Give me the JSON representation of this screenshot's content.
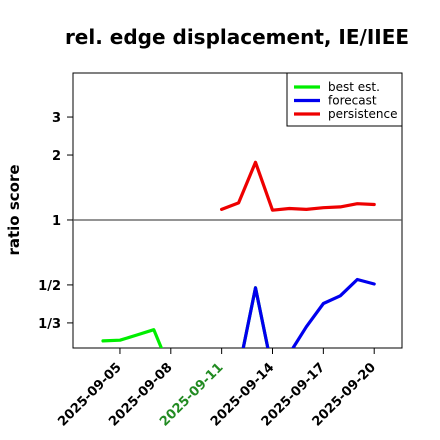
{
  "chart_data": {
    "type": "line",
    "title": "rel. edge displacement, IE/IIEE",
    "xlabel": "",
    "ylabel": "ratio score",
    "x": [
      "2025-09-04",
      "2025-09-05",
      "2025-09-06",
      "2025-09-07",
      "2025-09-08",
      "2025-09-09",
      "2025-09-10",
      "2025-09-11",
      "2025-09-12",
      "2025-09-13",
      "2025-09-14",
      "2025-09-15",
      "2025-09-16",
      "2025-09-17",
      "2025-09-18",
      "2025-09-19",
      "2025-09-20"
    ],
    "xticks": [
      "2025-09-05",
      "2025-09-08",
      "2025-09-11",
      "2025-09-14",
      "2025-09-17",
      "2025-09-20"
    ],
    "xtick_colors": [
      "#000000",
      "#000000",
      "#228B22",
      "#000000",
      "#000000",
      "#000000"
    ],
    "yticks": [
      {
        "label": "1/3",
        "value": 0.3333
      },
      {
        "label": "1/2",
        "value": 0.5
      },
      {
        "label": "1",
        "value": 1
      },
      {
        "label": "2",
        "value": 2
      },
      {
        "label": "3",
        "value": 3
      }
    ],
    "yscale": "log",
    "ylim": [
      0.255,
      4.8
    ],
    "reference_line": 1,
    "legend": {
      "position": "top-right",
      "entries": [
        "best est.",
        "forecast",
        "persistence"
      ]
    },
    "series": [
      {
        "name": "best est.",
        "color": "#00ee00",
        "values": [
          0.275,
          0.277,
          0.293,
          0.31,
          0.2,
          null,
          null,
          null,
          0.2,
          0.485,
          0.2,
          null,
          null,
          null,
          null,
          null,
          null
        ]
      },
      {
        "name": "forecast",
        "color": "#0000ee",
        "values": [
          null,
          null,
          null,
          null,
          null,
          null,
          null,
          null,
          0.2,
          0.485,
          0.2,
          0.24,
          0.32,
          0.41,
          0.445,
          0.53,
          0.505
        ]
      },
      {
        "name": "persistence",
        "color": "#ee0000",
        "values": [
          null,
          null,
          null,
          null,
          null,
          null,
          null,
          1.12,
          1.2,
          1.85,
          1.11,
          1.13,
          1.12,
          1.14,
          1.15,
          1.19,
          1.18
        ]
      }
    ]
  }
}
